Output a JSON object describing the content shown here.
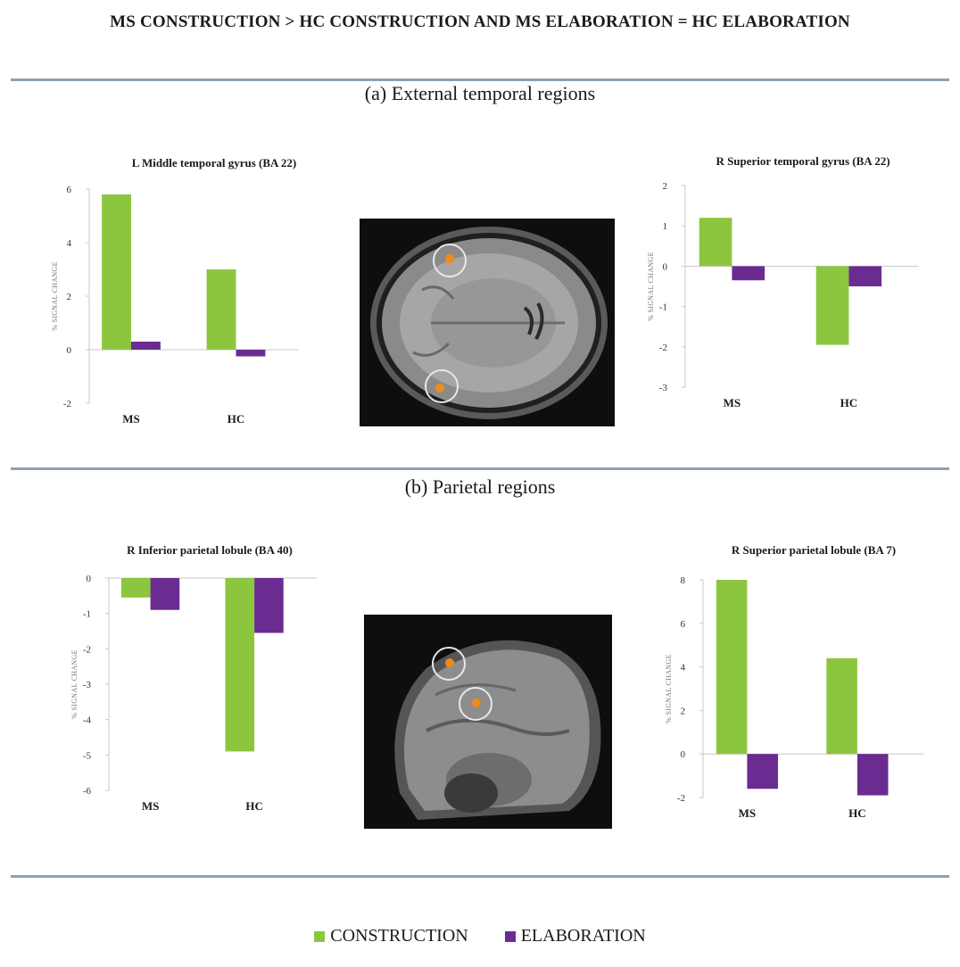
{
  "title": "MS CONSTRUCTION > HC CONSTRUCTION AND MS ELABORATION = HC ELABORATION",
  "sections": {
    "a": "(a) External temporal regions",
    "b": "(b) Parietal regions"
  },
  "colors": {
    "construction": "#8cc63f",
    "elaboration": "#6a2c91"
  },
  "legend": {
    "construction": "CONSTRUCTION",
    "elaboration": "ELABORATION"
  },
  "chart_data": [
    {
      "type": "bar",
      "title": "L Middle temporal gyrus (BA 22)",
      "ylabel": "% SIGNAL CHANGE",
      "categories": [
        "MS",
        "HC"
      ],
      "ylim": [
        -2,
        6
      ],
      "yticks": [
        -2,
        0,
        2,
        4,
        6
      ],
      "series": [
        {
          "name": "CONSTRUCTION",
          "values": [
            5.8,
            3.0
          ]
        },
        {
          "name": "ELABORATION",
          "values": [
            0.3,
            -0.25
          ]
        }
      ]
    },
    {
      "type": "bar",
      "title": "R Superior temporal gyrus (BA 22)",
      "ylabel": "% SIGNAL CHANGE",
      "categories": [
        "MS",
        "HC"
      ],
      "ylim": [
        -3,
        2
      ],
      "yticks": [
        -3,
        -2,
        -1,
        0,
        1,
        2
      ],
      "series": [
        {
          "name": "CONSTRUCTION",
          "values": [
            1.2,
            -1.95
          ]
        },
        {
          "name": "ELABORATION",
          "values": [
            -0.35,
            -0.5
          ]
        }
      ]
    },
    {
      "type": "bar",
      "title": "R Inferior parietal lobule (BA 40)",
      "ylabel": "% SIGNAL CHANGE",
      "categories": [
        "MS",
        "HC"
      ],
      "ylim": [
        -6,
        0
      ],
      "yticks": [
        -6,
        -5,
        -4,
        -3,
        -2,
        -1,
        0
      ],
      "series": [
        {
          "name": "CONSTRUCTION",
          "values": [
            -0.55,
            -4.9
          ]
        },
        {
          "name": "ELABORATION",
          "values": [
            -0.9,
            -1.55
          ]
        }
      ]
    },
    {
      "type": "bar",
      "title": "R Superior parietal lobule (BA 7)",
      "ylabel": "% SIGNAL CHANGE",
      "categories": [
        "MS",
        "HC"
      ],
      "ylim": [
        -2,
        8
      ],
      "yticks": [
        -2,
        0,
        2,
        4,
        6,
        8
      ],
      "series": [
        {
          "name": "CONSTRUCTION",
          "values": [
            8.0,
            4.4
          ]
        },
        {
          "name": "ELABORATION",
          "values": [
            -1.6,
            -1.9
          ]
        }
      ]
    }
  ]
}
